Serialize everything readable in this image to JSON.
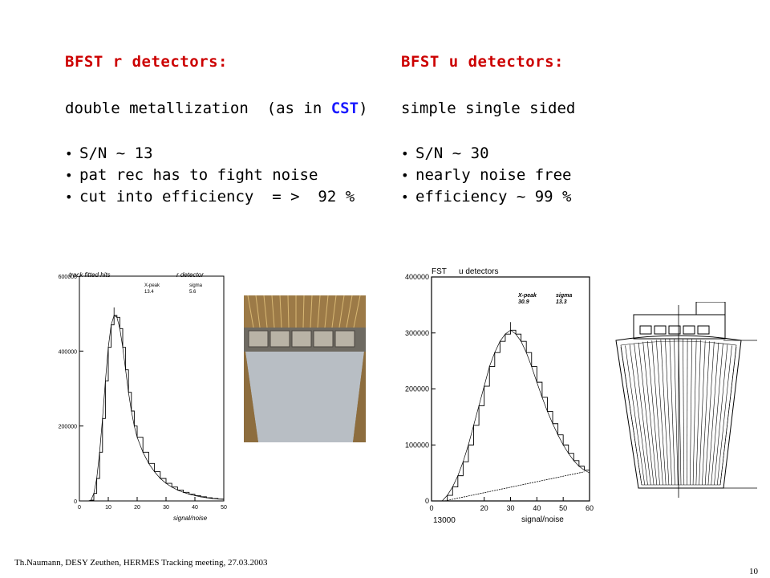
{
  "left": {
    "heading": "BFST r detectors:",
    "subtitle_pre": "double metallization  (as in ",
    "subtitle_cst": "CST",
    "subtitle_post": ")",
    "bullets": [
      "S/N ~ 13",
      "pat rec has to fight noise",
      "cut into efficiency  = >  92 %"
    ]
  },
  "right": {
    "heading": "BFST u detectors:",
    "subtitle": "simple single sided",
    "bullets": [
      "S/N ~ 30",
      "nearly noise free",
      "efficiency ~ 99 %"
    ]
  },
  "footer": "Th.Naumann, DESY Zeuthen, HERMES Tracking meeting,  27.03.2003",
  "page_number": "10",
  "chart_data": [
    {
      "type": "line",
      "title": "track fitted hits",
      "subtitle": "r detector",
      "xlabel": "signal/noise",
      "ylabel": "",
      "xlim": [
        0,
        50
      ],
      "ylim": [
        0,
        600000
      ],
      "xticks": [
        "0",
        "10",
        "20",
        "30",
        "40",
        "50"
      ],
      "yticks": [
        "0",
        "200000",
        "400000",
        "600000"
      ],
      "stats_labels": [
        "X-peak",
        "sigma"
      ],
      "stats_values": [
        "13.4",
        "5.6"
      ],
      "series": [
        {
          "x": [
            0,
            3,
            4,
            5,
            6,
            7,
            8,
            9,
            10,
            11,
            12,
            13,
            14,
            15,
            16,
            17,
            18,
            19,
            20,
            22,
            24,
            26,
            28,
            30,
            32,
            34,
            36,
            38,
            40,
            42,
            44,
            46,
            48,
            50
          ],
          "values": [
            0,
            0,
            2000,
            20000,
            60000,
            130000,
            220000,
            320000,
            410000,
            470000,
            495000,
            490000,
            460000,
            410000,
            350000,
            290000,
            240000,
            200000,
            170000,
            130000,
            100000,
            78000,
            60000,
            47000,
            37000,
            29000,
            23000,
            18000,
            14000,
            11000,
            8500,
            6500,
            5000,
            4000
          ]
        }
      ]
    },
    {
      "type": "line",
      "title": "FST",
      "subtitle": "u detectors",
      "xlabel": "signal/noise",
      "ylabel": "",
      "xlim": [
        0,
        60
      ],
      "ylim": [
        0,
        400000
      ],
      "xticks": [
        "0",
        "20",
        "30",
        "40",
        "50",
        "60"
      ],
      "xtick_values": [
        0,
        20,
        30,
        40,
        50,
        60
      ],
      "yticks": [
        "0",
        "100000",
        "200000",
        "300000",
        "400000"
      ],
      "stats_labels": [
        "X-peak",
        "sigma"
      ],
      "stats_values": [
        "30.9",
        "13.3"
      ],
      "corner_label": "13000",
      "series": [
        {
          "x": [
            0,
            4,
            6,
            8,
            10,
            12,
            14,
            16,
            18,
            20,
            22,
            24,
            26,
            28,
            30,
            32,
            34,
            36,
            38,
            40,
            42,
            44,
            46,
            48,
            50,
            52,
            54,
            56,
            58,
            60
          ],
          "values": [
            0,
            0,
            10000,
            25000,
            45000,
            70000,
            100000,
            135000,
            170000,
            205000,
            240000,
            265000,
            285000,
            298000,
            305000,
            298000,
            285000,
            265000,
            240000,
            212000,
            185000,
            160000,
            138000,
            118000,
            100000,
            85000,
            72000,
            62000,
            55000,
            50000
          ]
        },
        {
          "x": [
            5,
            58
          ],
          "values": [
            0,
            52000
          ]
        }
      ]
    }
  ]
}
